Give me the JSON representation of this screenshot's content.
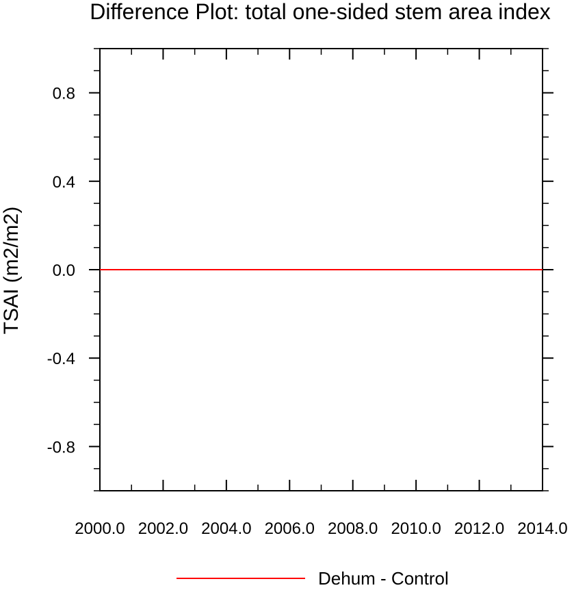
{
  "chart_data": {
    "type": "line",
    "title": "Difference Plot: total one-sided stem area index",
    "xlabel": "",
    "ylabel": "TSAI  (m2/m2)",
    "xlim": [
      2000.0,
      2014.0
    ],
    "ylim": [
      -1.0,
      1.0
    ],
    "x_ticks": [
      2000.0,
      2002.0,
      2004.0,
      2006.0,
      2008.0,
      2010.0,
      2012.0,
      2014.0
    ],
    "x_tick_labels": [
      "2000.0",
      "2002.0",
      "2004.0",
      "2006.0",
      "2008.0",
      "2010.0",
      "2012.0",
      "2014.0"
    ],
    "x_minor_step": 1.0,
    "y_ticks": [
      -0.8,
      -0.4,
      0.0,
      0.4,
      0.8
    ],
    "y_tick_labels": [
      "-0.8",
      "-0.4",
      "0.0",
      "0.4",
      "0.8"
    ],
    "y_minor_step": 0.1,
    "grid": false,
    "legend_position": "bottom-center",
    "series": [
      {
        "name": "Dehum - Control",
        "color": "#ff0000",
        "x": [
          2000.0,
          2014.0
        ],
        "y": [
          0.0,
          0.0
        ]
      }
    ]
  }
}
